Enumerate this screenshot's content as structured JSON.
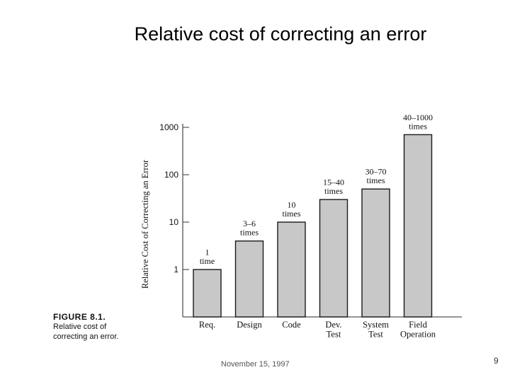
{
  "slide": {
    "title": "Relative cost of correcting an error",
    "footer_date": "November 15, 1997",
    "page_number": "9"
  },
  "figure": {
    "label": "FIGURE 8.1.",
    "caption_line1": "Relative cost of",
    "caption_line2": "correcting an error."
  },
  "colors": {
    "bar_fill": "#c8c8c8",
    "bar_stroke": "#1a1a1a",
    "axis": "#555555"
  },
  "chart_data": {
    "type": "bar",
    "title": "",
    "xlabel": "",
    "ylabel": "Relative Cost of Correcting an Error",
    "yscale": "log",
    "ylim": [
      0.1,
      1000
    ],
    "yticks": [
      {
        "value": 1000,
        "label": "1000"
      },
      {
        "value": 100,
        "label": "100"
      },
      {
        "value": 10,
        "label": "10"
      },
      {
        "value": 1,
        "label": "1"
      }
    ],
    "categories": [
      {
        "lines": [
          "Req."
        ]
      },
      {
        "lines": [
          "Design"
        ]
      },
      {
        "lines": [
          "Code"
        ]
      },
      {
        "lines": [
          "Dev.",
          "Test"
        ]
      },
      {
        "lines": [
          "System",
          "Test"
        ]
      },
      {
        "lines": [
          "Field",
          "Operation"
        ]
      }
    ],
    "values": [
      1,
      4,
      10,
      30,
      50,
      700
    ],
    "data_labels": [
      [
        "1",
        "time"
      ],
      [
        "3–6",
        "times"
      ],
      [
        "10",
        "times"
      ],
      [
        "15–40",
        "times"
      ],
      [
        "30–70",
        "times"
      ],
      [
        "40–1000",
        "times"
      ]
    ],
    "grid": false,
    "legend": "none"
  }
}
